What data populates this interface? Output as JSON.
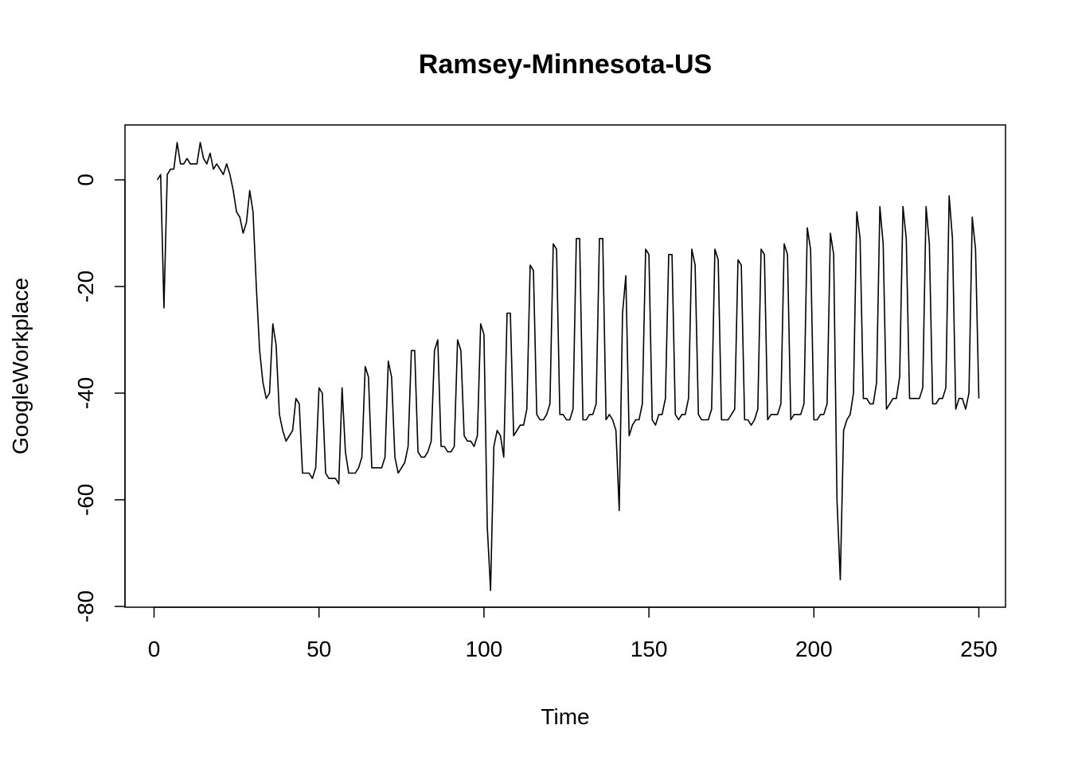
{
  "chart_data": {
    "type": "line",
    "title": "Ramsey-Minnesota-US",
    "xlabel": "Time",
    "ylabel": "GoogleWorkplace",
    "xlim": [
      1,
      248
    ],
    "ylim": [
      -80,
      7
    ],
    "xticks": [
      0,
      50,
      100,
      150,
      200,
      250
    ],
    "yticks": [
      -80,
      -60,
      -40,
      -20,
      0
    ],
    "grid": false,
    "legend": "none",
    "line_color": "#000000",
    "series": [
      {
        "values": [
          0,
          1,
          -24,
          1,
          2,
          2,
          7,
          3,
          3,
          4,
          3,
          3,
          3,
          7,
          4,
          3,
          5,
          2,
          3,
          2,
          1,
          3,
          1,
          -2,
          -6,
          -7,
          -10,
          -8,
          -2,
          -6,
          -20,
          -32,
          -38,
          -41,
          -40,
          -27,
          -31,
          -44,
          -47,
          -49,
          -48,
          -47,
          -41,
          -42,
          -55,
          -55,
          -55,
          -56,
          -54,
          -39,
          -40,
          -55,
          -56,
          -56,
          -56,
          -57,
          -39,
          -51,
          -55,
          -55,
          -55,
          -54,
          -52,
          -35,
          -37,
          -54,
          -54,
          -54,
          -54,
          -52,
          -34,
          -37,
          -52,
          -55,
          -54,
          -53,
          -50,
          -32,
          -32,
          -51,
          -52,
          -52,
          -51,
          -49,
          -32,
          -30,
          -50,
          -50,
          -51,
          -51,
          -50,
          -30,
          -32,
          -48,
          -49,
          -49,
          -50,
          -48,
          -27,
          -29,
          -65,
          -77,
          -50,
          -47,
          -48,
          -52,
          -25,
          -25,
          -48,
          -47,
          -46,
          -46,
          -43,
          -16,
          -17,
          -44,
          -45,
          -45,
          -44,
          -42,
          -12,
          -13,
          -44,
          -44,
          -45,
          -45,
          -43,
          -11,
          -11,
          -45,
          -45,
          -44,
          -44,
          -42,
          -11,
          -11,
          -45,
          -44,
          -45,
          -47,
          -62,
          -25,
          -18,
          -48,
          -46,
          -45,
          -45,
          -42,
          -13,
          -14,
          -45,
          -46,
          -44,
          -44,
          -41,
          -14,
          -14,
          -44,
          -45,
          -44,
          -44,
          -41,
          -13,
          -16,
          -44,
          -45,
          -45,
          -45,
          -43,
          -13,
          -15,
          -45,
          -45,
          -45,
          -44,
          -43,
          -15,
          -16,
          -45,
          -45,
          -46,
          -45,
          -43,
          -13,
          -14,
          -45,
          -44,
          -44,
          -44,
          -42,
          -12,
          -14,
          -45,
          -44,
          -44,
          -44,
          -42,
          -9,
          -13,
          -45,
          -45,
          -44,
          -44,
          -42,
          -10,
          -14,
          -60,
          -75,
          -47,
          -45,
          -44,
          -40,
          -6,
          -11,
          -41,
          -41,
          -42,
          -42,
          -38,
          -5,
          -12,
          -43,
          -42,
          -41,
          -41,
          -37,
          -5,
          -11,
          -41,
          -41,
          -41,
          -41,
          -39,
          -5,
          -12,
          -42,
          -42,
          -41,
          -41,
          -39,
          -3,
          -11,
          -43,
          -41,
          -41,
          -43,
          -40,
          -7,
          -13,
          -41
        ]
      }
    ]
  }
}
